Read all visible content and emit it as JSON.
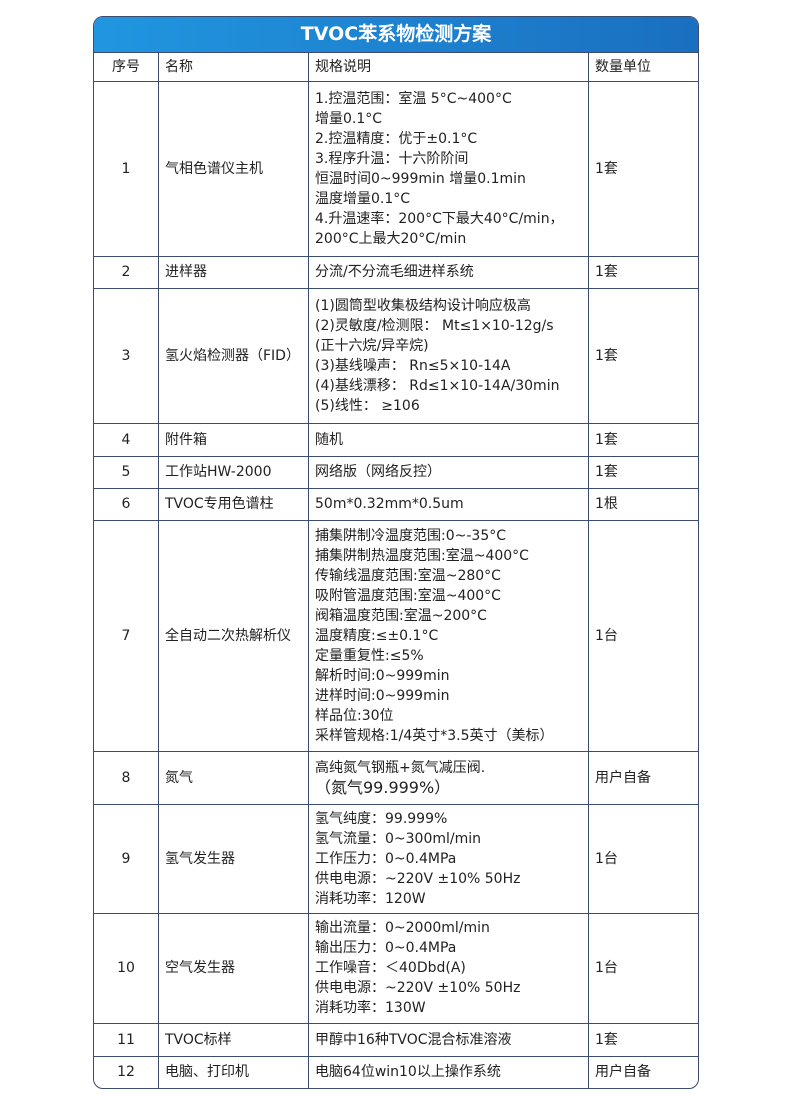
{
  "title": "TVOC苯系物检测方案",
  "headers": [
    "序号",
    "名称",
    "规格说明",
    "数量单位"
  ],
  "rows": [
    {
      "no": "1",
      "name": "气相色谱仪主机",
      "spec": [
        "1.控温范围：室温 5°C~400°C",
        "增量0.1°C",
        "2.控温精度：优于±0.1°C",
        "3.程序升温：十六阶阶间",
        "恒温时间0~999min 增量0.1min",
        "温度增量0.1°C",
        "4.升温速率：200°C下最大40°C/min，",
        "200°C上最大20°C/min"
      ],
      "qty": "1套"
    },
    {
      "no": "2",
      "name": "进样器",
      "spec": [
        "分流/不分流毛细进样系统"
      ],
      "qty": "1套"
    },
    {
      "no": "3",
      "name": "氢火焰检测器（FID）",
      "spec": [
        "(1)圆筒型收集极结构设计响应极高",
        "(2)灵敏度/检测限： Mt≤1×10-12g/s",
        "(正十六烷/异辛烷)",
        "(3)基线噪声： Rn≤5×10-14A",
        "(4)基线漂移： Rd≤1×10-14A/30min",
        "(5)线性： ≥106"
      ],
      "qty": "1套"
    },
    {
      "no": "4",
      "name": "附件箱",
      "spec": [
        "随机"
      ],
      "qty": "1套"
    },
    {
      "no": "5",
      "name": "工作站HW-2000",
      "spec": [
        "网络版（网络反控）"
      ],
      "qty": "1套"
    },
    {
      "no": "6",
      "name": "TVOC专用色谱柱",
      "spec": [
        "50m*0.32mm*0.5um"
      ],
      "qty": "1根"
    },
    {
      "no": "7",
      "name": "全自动二次热解析仪",
      "spec": [
        "捕集阱制冷温度范围:0~-35°C",
        "捕集阱制热温度范围:室温~400°C",
        "传输线温度范围:室温~280°C",
        "吸附管温度范围:室温~400°C",
        "阀箱温度范围:室温~200°C",
        "温度精度:≤±0.1°C",
        "定量重复性:≤5%",
        "解析时间:0~999min",
        "进样时间:0~999min",
        "样品位:30位",
        "采样管规格:1/4英寸*3.5英寸（美标）"
      ],
      "qty": "1台"
    },
    {
      "no": "8",
      "name": "氮气",
      "spec": [
        "高纯氮气钢瓶+氮气减压阀.",
        "（氮气99.999%）"
      ],
      "qty": "用户自备"
    },
    {
      "no": "9",
      "name": "氢气发生器",
      "spec": [
        "氢气纯度：99.999%",
        "氢气流量：0~300ml/min",
        "工作压力：0~0.4MPa",
        "供电电源：~220V ±10% 50Hz",
        "消耗功率：120W"
      ],
      "qty": "1台"
    },
    {
      "no": "10",
      "name": "空气发生器",
      "spec": [
        "输出流量：0~2000ml/min",
        "输出压力：0~0.4MPa",
        "工作噪音：＜40Dbd(A)",
        "供电电源：~220V ±10% 50Hz",
        "消耗功率：130W"
      ],
      "qty": "1台"
    },
    {
      "no": "11",
      "name": "TVOC标样",
      "spec": [
        "甲醇中16种TVOC混合标准溶液"
      ],
      "qty": "1套"
    },
    {
      "no": "12",
      "name": "电脑、打印机",
      "spec": [
        "电脑64位win10以上操作系统"
      ],
      "qty": "用户自备"
    }
  ]
}
